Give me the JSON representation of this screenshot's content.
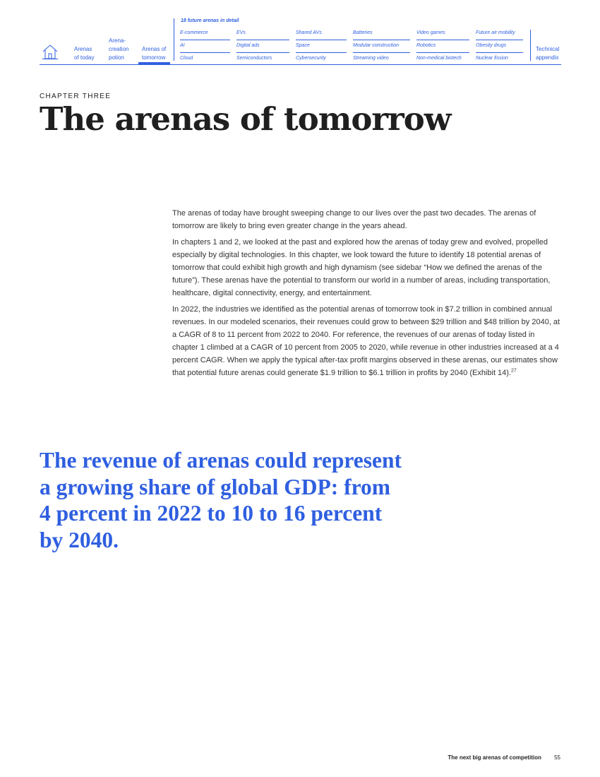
{
  "nav": {
    "home_icon": "home-icon",
    "primary": [
      {
        "lines": [
          "Arenas",
          "of today"
        ]
      },
      {
        "lines": [
          "Arena-",
          "creation",
          "potion"
        ]
      },
      {
        "lines": [
          "Arenas of",
          "tomorrow"
        ],
        "active": true
      }
    ],
    "detail_heading": "18 future arenas in detail",
    "detail_columns": [
      [
        "E-commerce",
        "AI",
        "Cloud"
      ],
      [
        "EVs",
        "Digital ads",
        "Semiconductors"
      ],
      [
        "Shared AVs",
        "Space",
        "Cybersecurity"
      ],
      [
        "Batteries",
        "Modular construction",
        "Streaming video"
      ],
      [
        "Video games",
        "Robotics",
        "Non-medical biotech"
      ],
      [
        "Future air mobility",
        "Obesity drugs",
        "Nuclear fission"
      ]
    ],
    "appendix": [
      "Technical",
      "appendix"
    ],
    "accent_color": "#2f5fe0"
  },
  "chapter": {
    "label": "CHAPTER THREE",
    "title": "The arenas of tomorrow"
  },
  "body": {
    "paragraphs": [
      "The arenas of today have brought sweeping change to our lives over the past two decades. The arenas of tomorrow are likely to bring even greater change in the years ahead.",
      "In chapters 1 and 2, we looked at the past and explored how the arenas of today grew and evolved, propelled especially by digital technologies. In this chapter, we look toward the future to identify 18 potential arenas of tomorrow that could exhibit high growth and high dynamism (see sidebar “How we defined the arenas of the future”). These arenas have the potential to transform our world in a number of areas, including transportation, healthcare, digital connectivity, energy, and entertainment.",
      "In 2022, the industries we identified as the potential arenas of tomorrow took in $7.2 trillion in combined annual revenues. In our modeled scenarios, their revenues could grow to between $29 trillion and $48 trillion by 2040, at a CAGR of 8 to 11 percent from 2022 to 2040. For reference, the revenues of our arenas of today listed in chapter 1 climbed at a CAGR of 10 percent from 2005 to 2020, while revenue in other industries increased at a 4 percent CAGR. When we apply the typical after-tax profit margins observed in these arenas, our estimates show that potential future arenas could generate $1.9 trillion to $6.1 trillion in profits by 2040 (Exhibit 14)."
    ],
    "footnote_ref": "27"
  },
  "pull_quote": "The revenue of arenas could represent a growing share of global GDP: from 4 percent in 2022 to 10 to 16 percent by 2040.",
  "footer": {
    "doc_title": "The next big arenas of competition",
    "page_number": "55"
  }
}
